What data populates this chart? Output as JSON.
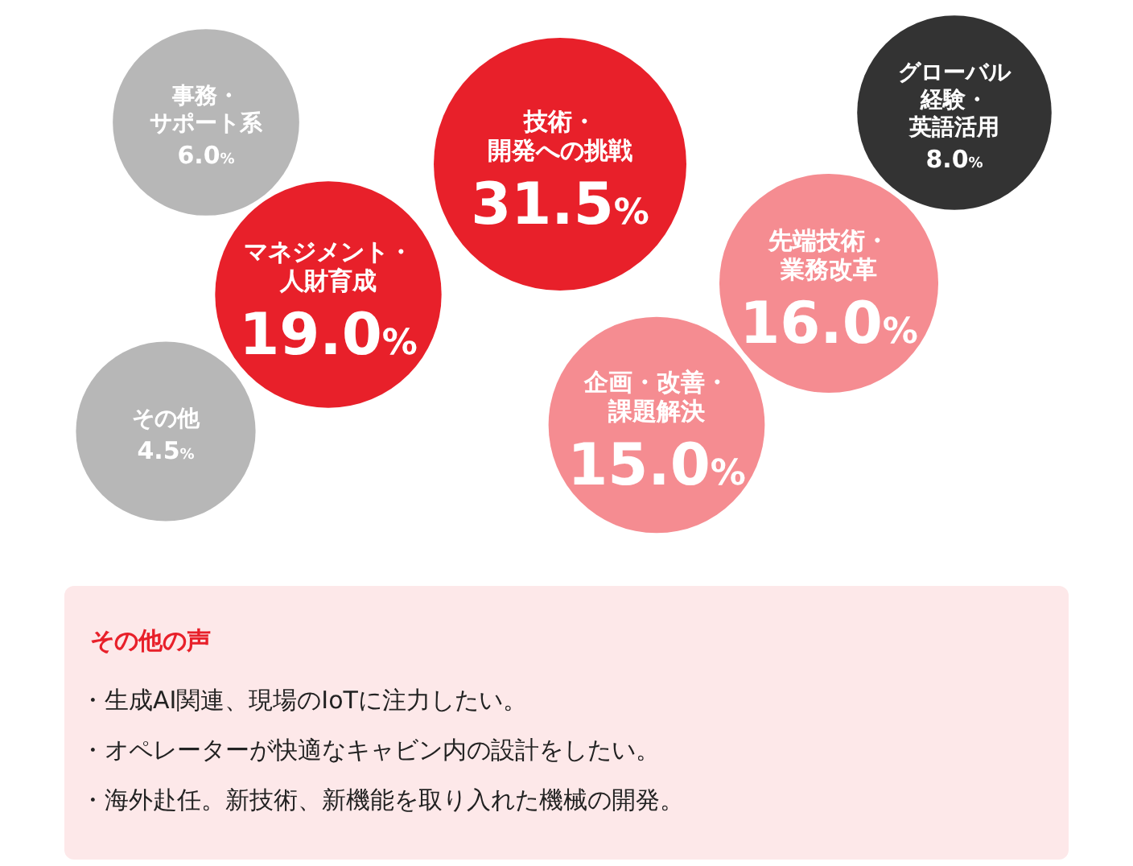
{
  "chart_data": {
    "type": "other",
    "categories": [
      "事務・サポート系",
      "マネジメント・人財育成",
      "技術・開発への挑戦",
      "グローバル経験・英語活用",
      "先端技術・業務改革",
      "企画・改善・課題解決",
      "その他"
    ],
    "values": [
      6.0,
      19.0,
      31.5,
      8.0,
      16.0,
      15.0,
      4.5
    ],
    "value_labels": [
      "6.0%",
      "19.0%",
      "31.5%",
      "8.0%",
      "16.0%",
      "15.0%",
      "4.5%"
    ],
    "colors": [
      "#b7b7b7",
      "#e8202a",
      "#e8202a",
      "#333333",
      "#f58c91",
      "#f58c91",
      "#b7b7b7"
    ],
    "annotations": [
      "その他の声",
      "・生成AI関連、現場のIoTに注力したい。",
      "・オペレーターが快適なキャビン内の設計をしたい。",
      "・海外赴任。新技術、新機能を取り入れた機械の開発。"
    ]
  }
}
